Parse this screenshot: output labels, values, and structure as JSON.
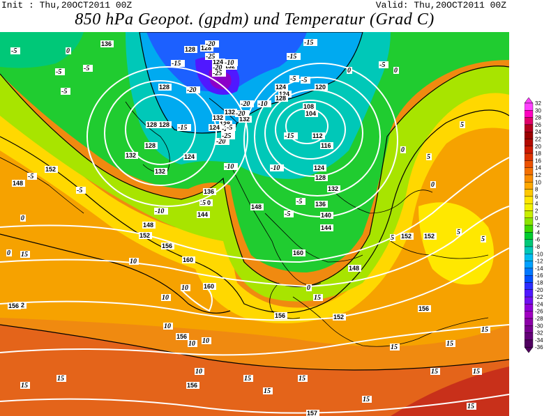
{
  "header": {
    "init": "Init : Thu,20OCT2011  00Z",
    "valid": "Valid: Thu,20OCT2011  00Z",
    "title": "850 hPa Geopot. (gpdm) und Temperatur (Grad C)"
  },
  "legend": {
    "labels": [
      "32",
      "30",
      "28",
      "26",
      "24",
      "22",
      "20",
      "18",
      "16",
      "14",
      "12",
      "10",
      "8",
      "6",
      "4",
      "2",
      "0",
      "-2",
      "-4",
      "-6",
      "-8",
      "-10",
      "-12",
      "-14",
      "-16",
      "-18",
      "-20",
      "-22",
      "-24",
      "-26",
      "-28",
      "-30",
      "-32",
      "-34",
      "-36"
    ],
    "colors": [
      "#ff40ff",
      "#ff00c0",
      "#e0006a",
      "#b4001e",
      "#9a0000",
      "#b20a00",
      "#cc1a00",
      "#de3300",
      "#ec5200",
      "#f47000",
      "#fa8c00",
      "#ffa800",
      "#ffc800",
      "#ffe600",
      "#f2f200",
      "#c8ee00",
      "#8ce400",
      "#40d800",
      "#00cc30",
      "#00c878",
      "#00c8b8",
      "#00bcf0",
      "#00a0ff",
      "#0078ff",
      "#0050ff",
      "#2c2cff",
      "#5018ff",
      "#7010ef",
      "#9000d8",
      "#a000c0",
      "#8c00a8",
      "#780090",
      "#640078",
      "#500060"
    ]
  },
  "map": {
    "geopotential_labels": [
      "136",
      "128",
      "128",
      "120",
      "124",
      "124",
      "128",
      "124",
      "132",
      "108",
      "104",
      "112",
      "116",
      "128",
      "128",
      "132",
      "132",
      "132",
      "128",
      "124",
      "124",
      "128",
      "132",
      "132",
      "128",
      "136",
      "140",
      "144",
      "148",
      "152",
      "148",
      "152",
      "156",
      "160",
      "160",
      "152",
      "148",
      "152",
      "156",
      "156",
      "156",
      "160",
      "156",
      "152",
      "156",
      "157",
      "124",
      "128",
      "132",
      "136",
      "140",
      "144",
      "148",
      "152"
    ],
    "temperature_labels": [
      "-5",
      "-5",
      "-5",
      "-5",
      "-15",
      "-20",
      "-20",
      "-10",
      "-15",
      "-5",
      "-5",
      "0",
      "0",
      "-5",
      "-15",
      "-25",
      "-25",
      "-20",
      "-20",
      "-20",
      "-20",
      "-25",
      "-25",
      "-15",
      "-15",
      "-10",
      "-10",
      "-5",
      "-5",
      "-5",
      "0",
      "0",
      "-10",
      "-10",
      "-5",
      "-5",
      "0",
      "0",
      "0",
      "0",
      "5",
      "5",
      "5",
      "5",
      "5",
      "5",
      "10",
      "10",
      "10",
      "10",
      "10",
      "10",
      "10",
      "15",
      "15",
      "15",
      "15",
      "15",
      "15",
      "15",
      "15",
      "15",
      "15",
      "15",
      "15",
      "15",
      "15"
    ]
  }
}
